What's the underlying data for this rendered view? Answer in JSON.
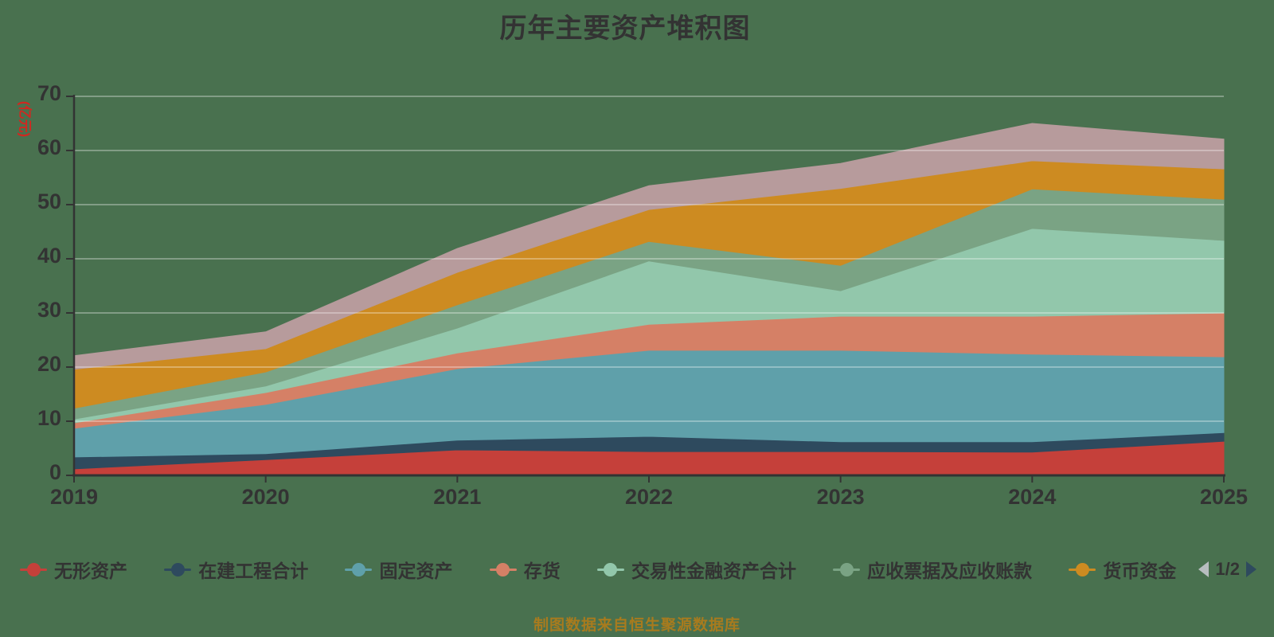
{
  "title": "历年主要资产堆积图",
  "footer": "制图数据来自恒生聚源数据库",
  "y_axis": {
    "name": "(亿元)",
    "min": 0,
    "max": 70,
    "tick_step": 10
  },
  "x_axis": {
    "labels": [
      "2019",
      "2020",
      "2021",
      "2022",
      "2023",
      "2024",
      "2025"
    ]
  },
  "legend": {
    "pager_text": "1/2"
  },
  "colors": {
    "background": "#49714F",
    "title_text": "#333333",
    "axis_text": "#333333",
    "axis_line": "#333333",
    "grid_line": "rgba(255,255,255,0.5)",
    "y_axis_name": "#D02820",
    "footer_text": "#A87B1E",
    "pager_prev_arrow": "#B7BDBF",
    "pager_next_arrow": "#2E4A5E"
  },
  "chart_data": {
    "type": "area",
    "stacked": true,
    "title": "历年主要资产堆积图",
    "ylabel": "(亿元)",
    "ylim": [
      0,
      70
    ],
    "grid": true,
    "legend_position": "bottom",
    "x": [
      "2019",
      "2020",
      "2021",
      "2022",
      "2023",
      "2024",
      "2025"
    ],
    "series": [
      {
        "name": "无形资产",
        "color": "#C5403A",
        "legend_visible": true,
        "values": [
          1.2,
          2.9,
          4.7,
          4.4,
          4.4,
          4.3,
          6.3
        ]
      },
      {
        "name": "在建工程合计",
        "color": "#2E4A5E",
        "legend_visible": true,
        "values": [
          2.2,
          1.1,
          1.8,
          2.8,
          1.8,
          1.9,
          1.6
        ]
      },
      {
        "name": "固定资产",
        "color": "#5FA0AA",
        "legend_visible": true,
        "values": [
          5.3,
          9.1,
          13.2,
          15.9,
          16.9,
          16.2,
          14.0
        ]
      },
      {
        "name": "存货",
        "color": "#D58066",
        "legend_visible": true,
        "values": [
          1.0,
          2.2,
          2.9,
          4.8,
          6.3,
          7.0,
          8.1
        ]
      },
      {
        "name": "交易性金融资产合计",
        "color": "#92C7AB",
        "legend_visible": true,
        "values": [
          0.7,
          1.2,
          4.6,
          11.7,
          4.7,
          16.2,
          13.4
        ]
      },
      {
        "name": "应收票据及应收账款",
        "color": "#7AA384",
        "legend_visible": true,
        "values": [
          2.0,
          2.6,
          4.3,
          3.6,
          4.7,
          7.3,
          7.6
        ]
      },
      {
        "name": "货币资金",
        "color": "#CD8B21",
        "legend_visible": true,
        "values": [
          7.2,
          4.3,
          6.0,
          5.9,
          14.2,
          5.2,
          5.6
        ]
      },
      {
        "name": "",
        "color": "#B79B9C",
        "legend_visible": false,
        "values": [
          2.5,
          3.1,
          4.4,
          4.4,
          4.6,
          6.9,
          5.5
        ]
      }
    ]
  }
}
